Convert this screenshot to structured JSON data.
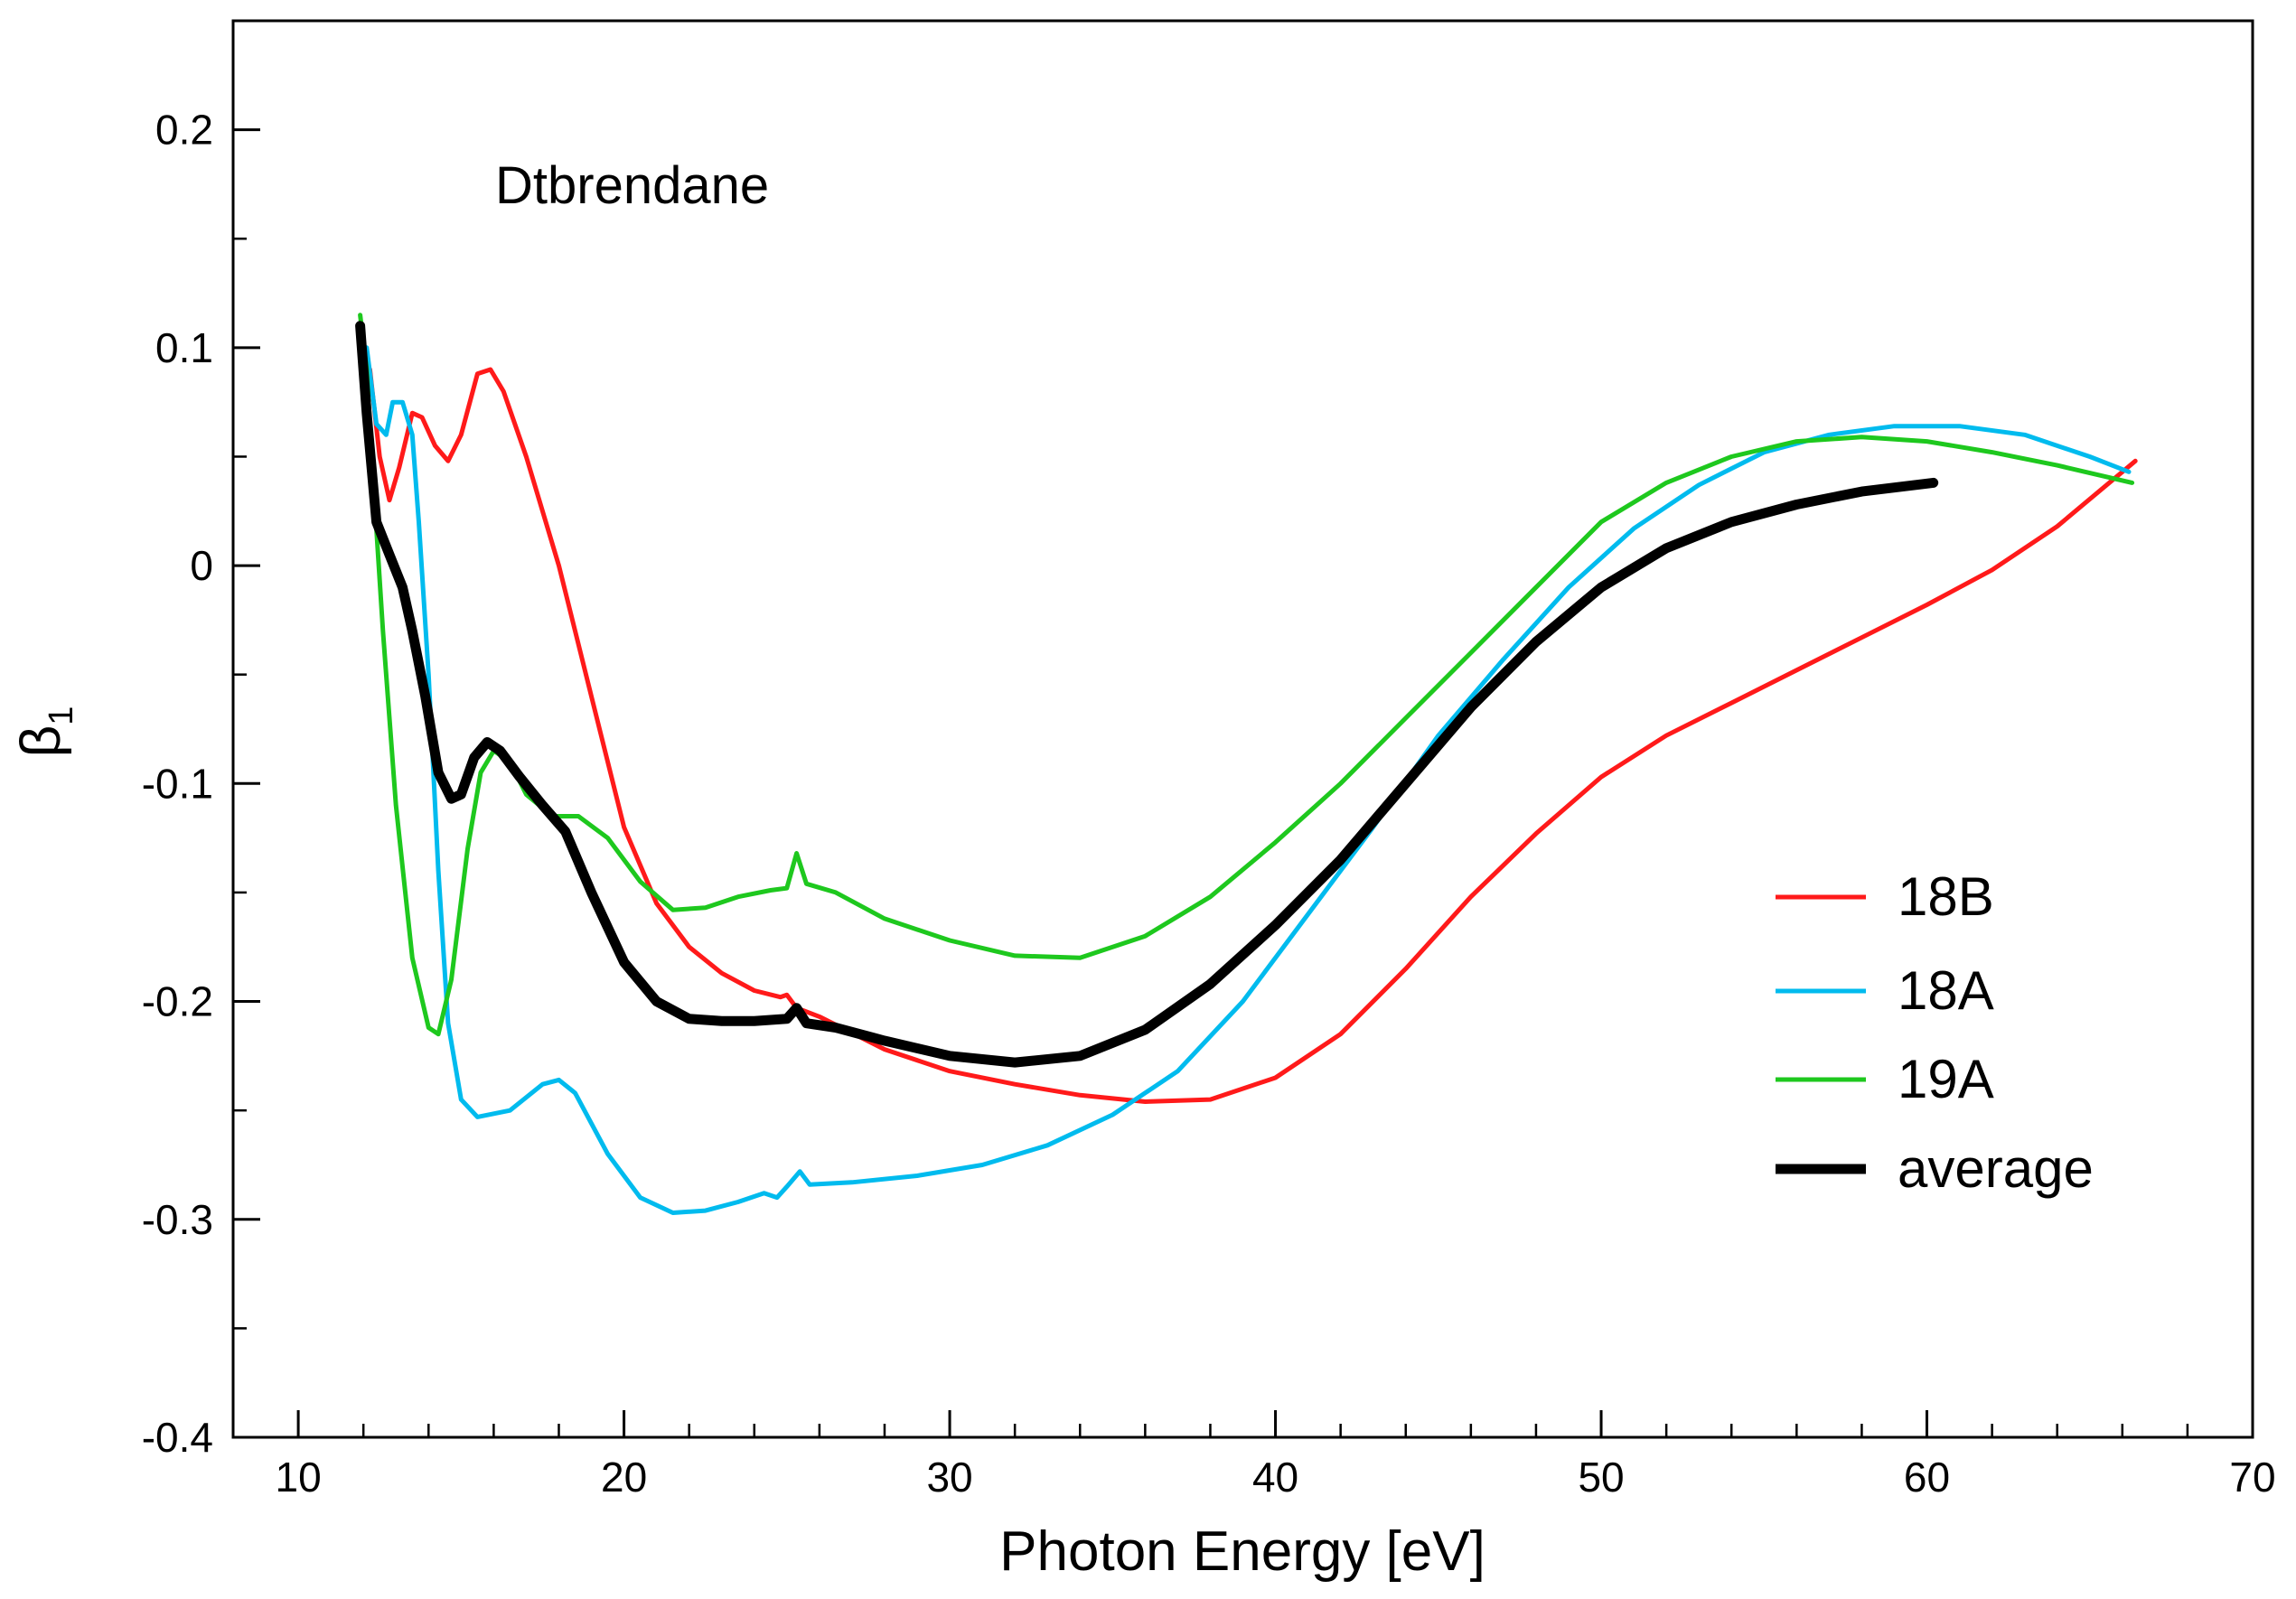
{
  "chart_data": {
    "type": "line",
    "title": "",
    "annotation": "Dtbrendane",
    "xlabel": "Photon Energy [eV]",
    "ylabel": "β",
    "ylabel_subscript": "1",
    "xlim": [
      8,
      70
    ],
    "ylim": [
      -0.4,
      0.25
    ],
    "x_ticks": [
      10,
      20,
      30,
      40,
      50,
      60,
      70
    ],
    "x_tick_labels": [
      "10",
      "20",
      "30",
      "40",
      "50",
      "60",
      "70"
    ],
    "y_ticks": [
      0.2,
      0.1,
      0,
      -0.1,
      -0.2,
      -0.3,
      -0.4
    ],
    "y_tick_labels": [
      "0.2",
      "0.1",
      "0",
      "-0.1",
      "-0.2",
      "-0.3",
      "-0.4"
    ],
    "grid": false,
    "legend_position": "lower-right",
    "series": [
      {
        "name": "18B",
        "color": "#ff1a1a",
        "width": 5,
        "points": [
          [
            12.2,
            0.09
          ],
          [
            12.5,
            0.05
          ],
          [
            12.8,
            0.03
          ],
          [
            13.1,
            0.045
          ],
          [
            13.5,
            0.07
          ],
          [
            13.8,
            0.068
          ],
          [
            14.2,
            0.055
          ],
          [
            14.6,
            0.048
          ],
          [
            15.0,
            0.06
          ],
          [
            15.5,
            0.088
          ],
          [
            15.9,
            0.09
          ],
          [
            16.3,
            0.08
          ],
          [
            17.0,
            0.05
          ],
          [
            18.0,
            0.0
          ],
          [
            19.0,
            -0.06
          ],
          [
            20.0,
            -0.12
          ],
          [
            21.0,
            -0.155
          ],
          [
            22.0,
            -0.175
          ],
          [
            23.0,
            -0.187
          ],
          [
            24.0,
            -0.195
          ],
          [
            24.8,
            -0.198
          ],
          [
            25.0,
            -0.197
          ],
          [
            25.3,
            -0.203
          ],
          [
            26.0,
            -0.207
          ],
          [
            28.0,
            -0.222
          ],
          [
            30.0,
            -0.232
          ],
          [
            32.0,
            -0.238
          ],
          [
            34.0,
            -0.243
          ],
          [
            36.0,
            -0.246
          ],
          [
            38.0,
            -0.245
          ],
          [
            40.0,
            -0.235
          ],
          [
            42.0,
            -0.215
          ],
          [
            44.0,
            -0.185
          ],
          [
            46.0,
            -0.152
          ],
          [
            48.0,
            -0.123
          ],
          [
            50.0,
            -0.097
          ],
          [
            52.0,
            -0.078
          ],
          [
            54.0,
            -0.063
          ],
          [
            56.0,
            -0.048
          ],
          [
            58.0,
            -0.033
          ],
          [
            60.0,
            -0.018
          ],
          [
            62.0,
            -0.002
          ],
          [
            64.0,
            0.018
          ],
          [
            66.4,
            0.048
          ]
        ]
      },
      {
        "name": "18A",
        "color": "#00bbee",
        "width": 5,
        "points": [
          [
            12.1,
            0.1
          ],
          [
            12.4,
            0.065
          ],
          [
            12.7,
            0.06
          ],
          [
            12.9,
            0.075
          ],
          [
            13.2,
            0.075
          ],
          [
            13.5,
            0.06
          ],
          [
            13.7,
            0.02
          ],
          [
            14.0,
            -0.05
          ],
          [
            14.3,
            -0.14
          ],
          [
            14.6,
            -0.21
          ],
          [
            15.0,
            -0.245
          ],
          [
            15.5,
            -0.253
          ],
          [
            16.5,
            -0.25
          ],
          [
            17.5,
            -0.238
          ],
          [
            18.0,
            -0.236
          ],
          [
            18.5,
            -0.242
          ],
          [
            19.5,
            -0.27
          ],
          [
            20.5,
            -0.29
          ],
          [
            21.5,
            -0.297
          ],
          [
            22.5,
            -0.296
          ],
          [
            23.5,
            -0.292
          ],
          [
            24.3,
            -0.288
          ],
          [
            24.7,
            -0.29
          ],
          [
            25.0,
            -0.285
          ],
          [
            25.4,
            -0.278
          ],
          [
            25.7,
            -0.284
          ],
          [
            27.0,
            -0.283
          ],
          [
            29.0,
            -0.28
          ],
          [
            31.0,
            -0.275
          ],
          [
            33.0,
            -0.266
          ],
          [
            35.0,
            -0.252
          ],
          [
            37.0,
            -0.232
          ],
          [
            39.0,
            -0.2
          ],
          [
            41.0,
            -0.16
          ],
          [
            43.0,
            -0.12
          ],
          [
            45.0,
            -0.078
          ],
          [
            47.0,
            -0.043
          ],
          [
            49.0,
            -0.01
          ],
          [
            51.0,
            0.017
          ],
          [
            53.0,
            0.037
          ],
          [
            55.0,
            0.052
          ],
          [
            57.0,
            0.06
          ],
          [
            59.0,
            0.064
          ],
          [
            61.0,
            0.064
          ],
          [
            63.0,
            0.06
          ],
          [
            65.0,
            0.05
          ],
          [
            66.2,
            0.043
          ]
        ]
      },
      {
        "name": "19A",
        "color": "#1ec81e",
        "width": 5,
        "points": [
          [
            11.9,
            0.115
          ],
          [
            12.1,
            0.09
          ],
          [
            12.3,
            0.04
          ],
          [
            12.6,
            -0.03
          ],
          [
            13.0,
            -0.11
          ],
          [
            13.5,
            -0.18
          ],
          [
            14.0,
            -0.212
          ],
          [
            14.3,
            -0.215
          ],
          [
            14.7,
            -0.19
          ],
          [
            15.2,
            -0.13
          ],
          [
            15.6,
            -0.095
          ],
          [
            16.0,
            -0.085
          ],
          [
            16.5,
            -0.09
          ],
          [
            17.0,
            -0.105
          ],
          [
            17.8,
            -0.115
          ],
          [
            18.6,
            -0.115
          ],
          [
            19.5,
            -0.125
          ],
          [
            20.5,
            -0.145
          ],
          [
            21.5,
            -0.158
          ],
          [
            22.5,
            -0.157
          ],
          [
            23.5,
            -0.152
          ],
          [
            24.5,
            -0.149
          ],
          [
            25.0,
            -0.148
          ],
          [
            25.3,
            -0.132
          ],
          [
            25.6,
            -0.146
          ],
          [
            26.5,
            -0.15
          ],
          [
            28.0,
            -0.162
          ],
          [
            30.0,
            -0.172
          ],
          [
            32.0,
            -0.179
          ],
          [
            34.0,
            -0.18
          ],
          [
            36.0,
            -0.17
          ],
          [
            38.0,
            -0.152
          ],
          [
            40.0,
            -0.127
          ],
          [
            42.0,
            -0.1
          ],
          [
            44.0,
            -0.07
          ],
          [
            46.0,
            -0.04
          ],
          [
            48.0,
            -0.01
          ],
          [
            50.0,
            0.02
          ],
          [
            52.0,
            0.038
          ],
          [
            54.0,
            0.05
          ],
          [
            56.0,
            0.057
          ],
          [
            58.0,
            0.059
          ],
          [
            60.0,
            0.057
          ],
          [
            62.0,
            0.052
          ],
          [
            64.0,
            0.046
          ],
          [
            66.3,
            0.038
          ]
        ]
      },
      {
        "name": "average",
        "color": "#000000",
        "width": 11,
        "points": [
          [
            11.9,
            0.11
          ],
          [
            12.1,
            0.07
          ],
          [
            12.4,
            0.02
          ],
          [
            12.8,
            0.005
          ],
          [
            13.2,
            -0.01
          ],
          [
            13.5,
            -0.03
          ],
          [
            13.9,
            -0.06
          ],
          [
            14.3,
            -0.095
          ],
          [
            14.7,
            -0.107
          ],
          [
            15.0,
            -0.105
          ],
          [
            15.4,
            -0.088
          ],
          [
            15.8,
            -0.081
          ],
          [
            16.2,
            -0.085
          ],
          [
            16.8,
            -0.097
          ],
          [
            17.5,
            -0.11
          ],
          [
            18.2,
            -0.122
          ],
          [
            19.0,
            -0.15
          ],
          [
            20.0,
            -0.182
          ],
          [
            21.0,
            -0.2
          ],
          [
            22.0,
            -0.208
          ],
          [
            23.0,
            -0.209
          ],
          [
            24.0,
            -0.209
          ],
          [
            25.0,
            -0.208
          ],
          [
            25.3,
            -0.203
          ],
          [
            25.6,
            -0.21
          ],
          [
            26.5,
            -0.212
          ],
          [
            28.0,
            -0.218
          ],
          [
            30.0,
            -0.225
          ],
          [
            32.0,
            -0.228
          ],
          [
            34.0,
            -0.225
          ],
          [
            36.0,
            -0.213
          ],
          [
            38.0,
            -0.192
          ],
          [
            40.0,
            -0.165
          ],
          [
            42.0,
            -0.135
          ],
          [
            44.0,
            -0.1
          ],
          [
            46.0,
            -0.065
          ],
          [
            48.0,
            -0.035
          ],
          [
            50.0,
            -0.01
          ],
          [
            52.0,
            0.008
          ],
          [
            54.0,
            0.02
          ],
          [
            56.0,
            0.028
          ],
          [
            58.0,
            0.034
          ],
          [
            60.2,
            0.038
          ]
        ]
      }
    ]
  }
}
